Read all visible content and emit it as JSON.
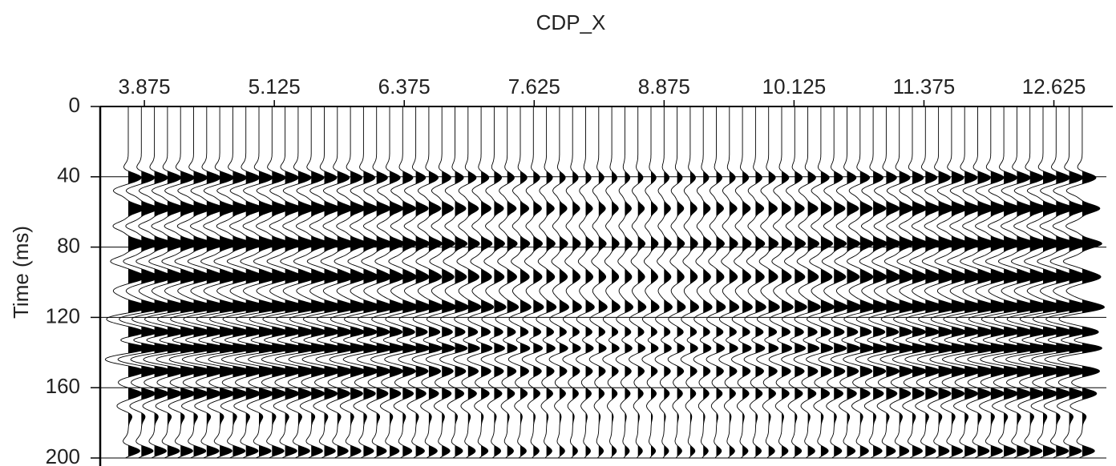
{
  "chart_data": {
    "type": "seismic",
    "title": "CDP_X",
    "ylabel": "Time (ms)",
    "xlim": [
      3.45,
      13.13
    ],
    "xticks": [
      3.875,
      5.125,
      6.375,
      7.625,
      8.875,
      10.125,
      11.375,
      12.625
    ],
    "ylim": [
      0,
      200
    ],
    "yticks": [
      0,
      40,
      80,
      120,
      160,
      200
    ],
    "grid": true,
    "color": "#000000",
    "reflectors": {
      "times": [
        40,
        48,
        58,
        68,
        78,
        88,
        97,
        105,
        114,
        121,
        129,
        137,
        144,
        151,
        163,
        171,
        196
      ],
      "amplitudes": [
        0.6,
        -0.7,
        0.9,
        -0.8,
        1.0,
        -0.9,
        0.8,
        -0.6,
        0.9,
        -0.8,
        0.9,
        1.0,
        -0.8,
        0.7,
        0.7,
        -0.5,
        0.7
      ]
    }
  }
}
